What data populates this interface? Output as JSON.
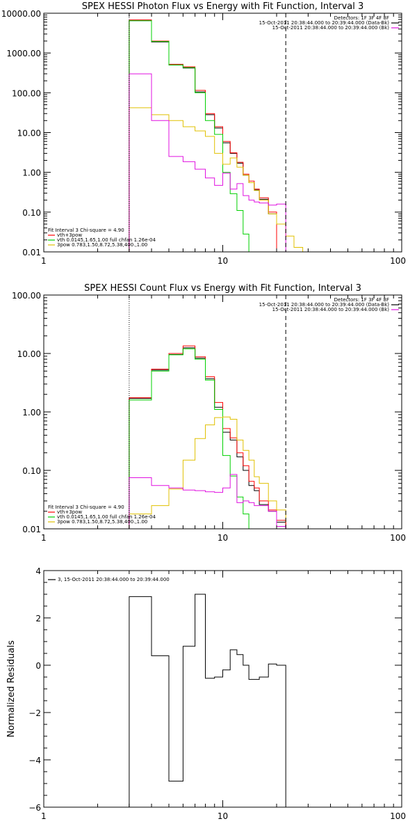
{
  "chart_data": [
    {
      "type": "line",
      "title": "SPEX HESSI Photon Flux vs Energy with Fit Function, Interval 3",
      "xscale": "log",
      "yscale": "log",
      "xlim": [
        1,
        100
      ],
      "ylim": [
        0.01,
        10000
      ],
      "xticks": [
        {
          "v": 1,
          "label": "1"
        },
        {
          "v": 10,
          "label": "10"
        },
        {
          "v": 100,
          "label": "100"
        }
      ],
      "yticks": [
        {
          "v": 0.01,
          "label": "0.01"
        },
        {
          "v": 0.1,
          "label": "0.10"
        },
        {
          "v": 1,
          "label": "1.00"
        },
        {
          "v": 10,
          "label": "10.00"
        },
        {
          "v": 100,
          "label": "100.00"
        },
        {
          "v": 1000,
          "label": "1000.00"
        },
        {
          "v": 10000,
          "label": "10000.00"
        }
      ],
      "vlines": [
        {
          "x": 3,
          "style": "dotted"
        },
        {
          "x": 22.5,
          "style": "dashed"
        }
      ],
      "legend_top": {
        "lines": [
          "Detectors: 1F 3F 4F 8F",
          "15-Oct-2011 20:38:44.000 to 20:39:44.000 (Data-Bk)",
          "15-Oct-2011 20:38:44.000 to 20:39:44.000 (Bk)"
        ],
        "colors": [
          "",
          "#000000",
          "#e010e0"
        ]
      },
      "legend_bottom": {
        "lines": [
          "Fit Interval 3   Chi-square = 4.90",
          "vth+3pow",
          "vth 0.0145,1.65,1.00  full chfan 1.26e-04",
          "3pow 0.783,1.50,8.72,5.38,400.,1.00"
        ],
        "colors": [
          "",
          "#ff0000",
          "#00d000",
          "#e0c000"
        ]
      },
      "edges": [
        3.0,
        4.0,
        5.0,
        6.0,
        7.0,
        8.0,
        9.0,
        10.0,
        11.0,
        12.0,
        13.0,
        14.0,
        15.0,
        16.0,
        18.0,
        20.0,
        22.5,
        25.0,
        28.0,
        32.0
      ],
      "series": [
        {
          "name": "Data-Bk",
          "color": "#000000",
          "values": [
            6500,
            1900,
            500,
            420,
            105,
            28,
            13,
            5.5,
            3.0,
            1.7,
            0.85,
            0.55,
            0.36,
            0.21,
            0.09
          ]
        },
        {
          "name": "vth+3pow",
          "color": "#ff0000",
          "values": [
            6800,
            2000,
            520,
            450,
            115,
            30,
            14,
            6.0,
            3.1,
            1.8,
            0.9,
            0.6,
            0.38,
            0.23,
            0.1
          ]
        },
        {
          "name": "vth",
          "color": "#00d000",
          "values": [
            6500,
            1950,
            500,
            430,
            100,
            20,
            9.0,
            1.0,
            0.29,
            0.11,
            0.028,
            0.009
          ]
        },
        {
          "name": "3pow",
          "color": "#e0c000",
          "values": [
            42,
            28,
            20,
            14,
            11,
            8.0,
            3.0,
            1.6,
            2.3,
            1.35,
            0.85,
            0.55,
            0.35,
            0.2,
            0.09,
            0.05,
            0.025,
            0.013,
            0.009
          ]
        },
        {
          "name": "Bk",
          "color": "#e010e0",
          "values": [
            300,
            20,
            2.5,
            1.85,
            1.2,
            0.72,
            0.47,
            0.95,
            0.38,
            0.52,
            0.26,
            0.2,
            0.18,
            0.17,
            0.15,
            0.16
          ]
        }
      ]
    },
    {
      "type": "line",
      "title": "SPEX HESSI Count Flux vs Energy with Fit Function, Interval 3",
      "xscale": "log",
      "yscale": "log",
      "xlim": [
        1,
        100
      ],
      "ylim": [
        0.01,
        100
      ],
      "xticks": [
        {
          "v": 1,
          "label": "1"
        },
        {
          "v": 10,
          "label": "10"
        },
        {
          "v": 100,
          "label": "100"
        }
      ],
      "yticks": [
        {
          "v": 0.01,
          "label": "0.01"
        },
        {
          "v": 0.1,
          "label": "0.10"
        },
        {
          "v": 1,
          "label": "1.00"
        },
        {
          "v": 10,
          "label": "10.00"
        },
        {
          "v": 100,
          "label": "100.00"
        }
      ],
      "vlines": [
        {
          "x": 3,
          "style": "dotted"
        },
        {
          "x": 22.5,
          "style": "dashed"
        }
      ],
      "legend_top": {
        "lines": [
          "Detectors: 1F 3F 4F 8F",
          "15-Oct-2011 20:38:44.000 to 20:39:44.000 (Data-Bk)",
          "15-Oct-2011 20:38:44.000 to 20:39:44.000 (Bk)"
        ],
        "colors": [
          "",
          "#000000",
          "#e010e0"
        ]
      },
      "legend_bottom": {
        "lines": [
          "Fit Interval 3   Chi-square = 4.90",
          "vth+3pow",
          "vth 0.0145,1.65,1.00  full chfan 1.26e-04",
          "3pow 0.783,1.50,8.72,5.38,400.,1.00"
        ],
        "colors": [
          "",
          "#ff0000",
          "#00d000",
          "#e0c000"
        ]
      },
      "edges": [
        3.0,
        4.0,
        5.0,
        6.0,
        7.0,
        8.0,
        9.0,
        10.0,
        11.0,
        12.0,
        13.0,
        14.0,
        15.0,
        16.0,
        18.0,
        20.0,
        22.5
      ],
      "series": [
        {
          "name": "Data-Bk",
          "color": "#000000",
          "values": [
            1.7,
            5.2,
            9.6,
            12.5,
            8.3,
            3.7,
            1.2,
            0.45,
            0.33,
            0.17,
            0.1,
            0.055,
            0.045,
            0.026,
            0.02,
            0.013
          ]
        },
        {
          "name": "vth+3pow",
          "color": "#ff0000",
          "values": [
            1.75,
            5.4,
            10.0,
            13.5,
            8.8,
            4.0,
            1.45,
            0.52,
            0.36,
            0.2,
            0.12,
            0.065,
            0.05,
            0.03,
            0.021,
            0.014
          ]
        },
        {
          "name": "vth",
          "color": "#00d000",
          "values": [
            1.6,
            5.0,
            9.5,
            12.0,
            8.0,
            3.5,
            1.1,
            0.18,
            0.08,
            0.035,
            0.018,
            0.009
          ]
        },
        {
          "name": "3pow",
          "color": "#e0c000",
          "values": [
            0.018,
            0.025,
            0.048,
            0.15,
            0.35,
            0.6,
            0.8,
            0.82,
            0.75,
            0.33,
            0.22,
            0.15,
            0.078,
            0.06,
            0.03,
            0.021,
            0.013,
            0.011
          ]
        },
        {
          "name": "Bk",
          "color": "#e010e0",
          "values": [
            0.075,
            0.055,
            0.05,
            0.046,
            0.045,
            0.043,
            0.042,
            0.05,
            0.085,
            0.028,
            0.03,
            0.028,
            0.025,
            0.025,
            0.02,
            0.011
          ]
        }
      ]
    },
    {
      "type": "line",
      "title": "",
      "ylabel": "Normalized Residuals",
      "xscale": "log",
      "yscale": "linear",
      "xlim": [
        1,
        100
      ],
      "ylim": [
        -6,
        4
      ],
      "xticks": [
        {
          "v": 1,
          "label": "1"
        },
        {
          "v": 10,
          "label": "10"
        },
        {
          "v": 100,
          "label": "100"
        }
      ],
      "yticks": [
        {
          "v": -6,
          "label": "−6"
        },
        {
          "v": -4,
          "label": "−4"
        },
        {
          "v": -2,
          "label": "−2"
        },
        {
          "v": 0,
          "label": "0"
        },
        {
          "v": 2,
          "label": "2"
        },
        {
          "v": 4,
          "label": "4"
        }
      ],
      "legend_top": {
        "lines": [
          "3, 15-Oct-2011 20:38:44.000 to 20:39:44.000"
        ],
        "colors": [
          "#000000"
        ]
      },
      "edges": [
        3.0,
        4.0,
        5.0,
        6.0,
        7.0,
        8.0,
        9.0,
        10.0,
        11.0,
        12.0,
        13.0,
        14.0,
        15.0,
        16.0,
        18.0,
        20.0,
        22.5
      ],
      "series": [
        {
          "name": "",
          "color": "#000000",
          "values": [
            2.9,
            0.4,
            -4.9,
            0.8,
            3.0,
            -0.55,
            -0.5,
            -0.2,
            0.65,
            0.45,
            0.0,
            -0.6,
            -0.6,
            -0.5,
            0.05,
            0.0
          ]
        }
      ]
    }
  ]
}
